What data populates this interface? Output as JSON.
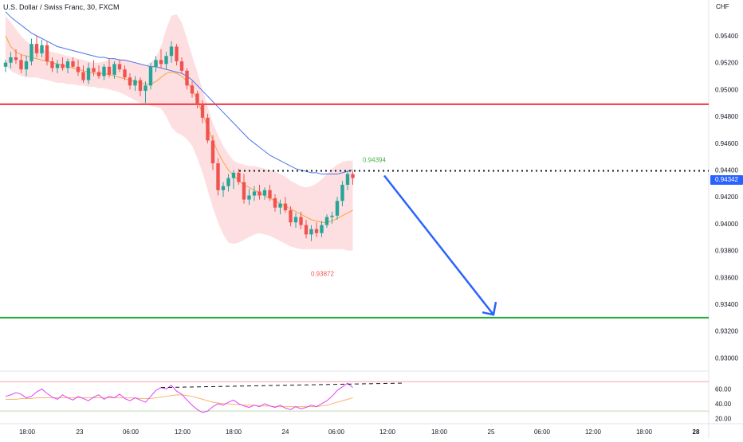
{
  "symbol_title": "U.S. Dollar / Swiss Franc, 30, FXCM",
  "currency": "CHF",
  "price_axis_labels": [
    "0.95400",
    "0.95200",
    "0.95000",
    "0.94800",
    "0.94600",
    "0.94400",
    "0.94200",
    "0.94000",
    "0.93800",
    "0.93600",
    "0.93400",
    "0.93200",
    "0.93000"
  ],
  "current_price": "0.94342",
  "annotations": {
    "high_label": "0.94394",
    "low_label": "0.93872"
  },
  "rsi_axis_labels": [
    "60.00",
    "40.00",
    "20.00"
  ],
  "time_axis_labels": [
    "18:00",
    "23",
    "06:00",
    "12:00",
    "18:00",
    "24",
    "06:00",
    "12:00",
    "18:00",
    "25",
    "06:00",
    "12:00",
    "18:00",
    "28"
  ],
  "colors": {
    "bull": "#26a69a",
    "bear": "#ef5350",
    "resistance": "#f23645",
    "support": "#22ab3a",
    "projection": "#2962ff",
    "ma_fast": "#f7a440",
    "ma_slow": "#4a74e8",
    "band": "#fdd9dc",
    "rsi": "#e040fb",
    "rsi_ma": "#f7b46a",
    "high_label": "#4caf50",
    "low_label": "#f05454"
  },
  "indicators": {
    "rsi_levels": [
      70,
      30
    ]
  },
  "chart_data": {
    "type": "candlestick",
    "price_range": [
      0.929,
      0.956
    ],
    "resistance_level": 0.9489,
    "support_level": 0.933,
    "high_marker": 0.94394,
    "low_marker": 0.93872,
    "last_price": 0.94342,
    "candles": [
      [
        0.9517,
        0.9522,
        0.9513,
        0.952
      ],
      [
        0.952,
        0.9528,
        0.9516,
        0.9524
      ],
      [
        0.9524,
        0.953,
        0.9519,
        0.9522
      ],
      [
        0.9522,
        0.9526,
        0.9512,
        0.9515
      ],
      [
        0.9515,
        0.9525,
        0.951,
        0.9521
      ],
      [
        0.9521,
        0.9538,
        0.9518,
        0.9534
      ],
      [
        0.9534,
        0.954,
        0.9524,
        0.9527
      ],
      [
        0.9527,
        0.9537,
        0.9524,
        0.9533
      ],
      [
        0.9533,
        0.9536,
        0.9518,
        0.9521
      ],
      [
        0.9521,
        0.9524,
        0.9513,
        0.9516
      ],
      [
        0.9516,
        0.9522,
        0.9512,
        0.9519
      ],
      [
        0.9519,
        0.9524,
        0.9514,
        0.9516
      ],
      [
        0.9516,
        0.9523,
        0.9512,
        0.9521
      ],
      [
        0.9521,
        0.9524,
        0.9516,
        0.9517
      ],
      [
        0.9517,
        0.9522,
        0.951,
        0.9513
      ],
      [
        0.9513,
        0.9518,
        0.9505,
        0.9507
      ],
      [
        0.9507,
        0.952,
        0.9504,
        0.9516
      ],
      [
        0.9516,
        0.9522,
        0.951,
        0.9513
      ],
      [
        0.9513,
        0.9518,
        0.9508,
        0.951
      ],
      [
        0.951,
        0.9519,
        0.9507,
        0.9517
      ],
      [
        0.9517,
        0.9523,
        0.9509,
        0.9511
      ],
      [
        0.9511,
        0.9521,
        0.9508,
        0.9519
      ],
      [
        0.9519,
        0.9522,
        0.9513,
        0.9515
      ],
      [
        0.9515,
        0.9518,
        0.9507,
        0.9509
      ],
      [
        0.9509,
        0.9512,
        0.95,
        0.9503
      ],
      [
        0.9503,
        0.951,
        0.9499,
        0.9507
      ],
      [
        0.9507,
        0.9509,
        0.9495,
        0.9499
      ],
      [
        0.9499,
        0.9506,
        0.949,
        0.9503
      ],
      [
        0.9503,
        0.952,
        0.95,
        0.9517
      ],
      [
        0.9517,
        0.9525,
        0.9513,
        0.9522
      ],
      [
        0.9522,
        0.953,
        0.9516,
        0.9519
      ],
      [
        0.9519,
        0.9528,
        0.9515,
        0.9525
      ],
      [
        0.9525,
        0.9536,
        0.952,
        0.9532
      ],
      [
        0.9532,
        0.9534,
        0.9518,
        0.9521
      ],
      [
        0.9521,
        0.9524,
        0.9512,
        0.9514
      ],
      [
        0.9514,
        0.9516,
        0.95,
        0.9503
      ],
      [
        0.9503,
        0.9506,
        0.9494,
        0.9497
      ],
      [
        0.9497,
        0.9499,
        0.9486,
        0.9489
      ],
      [
        0.9489,
        0.9492,
        0.9475,
        0.9479
      ],
      [
        0.9479,
        0.9482,
        0.946,
        0.9462
      ],
      [
        0.9462,
        0.9466,
        0.944,
        0.9445
      ],
      [
        0.9445,
        0.9449,
        0.9421,
        0.9425
      ],
      [
        0.9425,
        0.9431,
        0.942,
        0.9428
      ],
      [
        0.9428,
        0.9437,
        0.9424,
        0.9434
      ],
      [
        0.9434,
        0.944,
        0.9426,
        0.9438
      ],
      [
        0.9438,
        0.9441,
        0.9429,
        0.9431
      ],
      [
        0.9431,
        0.9437,
        0.9415,
        0.9418
      ],
      [
        0.9418,
        0.9426,
        0.9414,
        0.9421
      ],
      [
        0.9421,
        0.9428,
        0.9417,
        0.9424
      ],
      [
        0.9424,
        0.9429,
        0.9418,
        0.9421
      ],
      [
        0.9421,
        0.9427,
        0.9418,
        0.9425
      ],
      [
        0.9425,
        0.9429,
        0.9417,
        0.9419
      ],
      [
        0.9419,
        0.9422,
        0.9409,
        0.9412
      ],
      [
        0.9412,
        0.9418,
        0.9407,
        0.9415
      ],
      [
        0.9415,
        0.942,
        0.9408,
        0.941
      ],
      [
        0.941,
        0.9413,
        0.9398,
        0.9401
      ],
      [
        0.9401,
        0.9408,
        0.9397,
        0.9405
      ],
      [
        0.9405,
        0.9409,
        0.9396,
        0.9399
      ],
      [
        0.9399,
        0.9403,
        0.9389,
        0.9392
      ],
      [
        0.9392,
        0.9399,
        0.9387,
        0.9396
      ],
      [
        0.9396,
        0.9401,
        0.939,
        0.9393
      ],
      [
        0.9393,
        0.9402,
        0.939,
        0.9399
      ],
      [
        0.9399,
        0.9407,
        0.9397,
        0.9405
      ],
      [
        0.9405,
        0.9409,
        0.94,
        0.9406
      ],
      [
        0.9406,
        0.942,
        0.9403,
        0.9417
      ],
      [
        0.9417,
        0.9432,
        0.9413,
        0.9429
      ],
      [
        0.9429,
        0.944,
        0.9425,
        0.9437
      ],
      [
        0.9437,
        0.9439,
        0.9429,
        0.9434
      ]
    ],
    "ma_fast": [
      0.954,
      0.9532,
      0.9528,
      0.9526,
      0.9525,
      0.9524,
      0.9523,
      0.9522,
      0.9521,
      0.952,
      0.9519,
      0.9518,
      0.9517,
      0.9516,
      0.9515,
      0.9514,
      0.9513,
      0.9512,
      0.9512,
      0.9512,
      0.9511,
      0.951,
      0.9509,
      0.9508,
      0.9507,
      0.9506,
      0.9505,
      0.9504,
      0.9504,
      0.9506,
      0.9509,
      0.9512,
      0.9513,
      0.9512,
      0.951,
      0.9506,
      0.95,
      0.9492,
      0.9482,
      0.9472,
      0.9462,
      0.9453,
      0.9446,
      0.944,
      0.9436,
      0.9432,
      0.9429,
      0.9427,
      0.9425,
      0.9423,
      0.9421,
      0.9419,
      0.9417,
      0.9415,
      0.9413,
      0.9411,
      0.9409,
      0.9407,
      0.9405,
      0.9403,
      0.9402,
      0.9401,
      0.9401,
      0.9402,
      0.9404,
      0.9406,
      0.9408,
      0.941
    ],
    "ma_slow": [
      0.9558,
      0.9554,
      0.9551,
      0.9548,
      0.9545,
      0.9542,
      0.954,
      0.9538,
      0.9536,
      0.9534,
      0.9532,
      0.9531,
      0.953,
      0.9529,
      0.9528,
      0.9527,
      0.9526,
      0.9525,
      0.9524,
      0.9524,
      0.9523,
      0.9523,
      0.9522,
      0.9522,
      0.9521,
      0.952,
      0.9519,
      0.9518,
      0.9517,
      0.9517,
      0.9516,
      0.9515,
      0.9514,
      0.9513,
      0.9512,
      0.951,
      0.9507,
      0.9503,
      0.9499,
      0.9495,
      0.9491,
      0.9487,
      0.9483,
      0.9479,
      0.9475,
      0.9471,
      0.9467,
      0.9463,
      0.946,
      0.9457,
      0.9454,
      0.9451,
      0.9449,
      0.9447,
      0.9445,
      0.9443,
      0.9441,
      0.944,
      0.9439,
      0.9438,
      0.9438,
      0.9437,
      0.9437,
      0.9437,
      0.9437,
      0.9438,
      0.9439,
      0.944
    ],
    "band_upper": [
      0.9555,
      0.955,
      0.9545,
      0.954,
      0.9536,
      0.9533,
      0.9531,
      0.953,
      0.9529,
      0.9528,
      0.9527,
      0.9526,
      0.9525,
      0.9524,
      0.9523,
      0.9522,
      0.9521,
      0.952,
      0.952,
      0.9521,
      0.9522,
      0.9523,
      0.9523,
      0.9522,
      0.9521,
      0.952,
      0.9519,
      0.9518,
      0.952,
      0.9524,
      0.9532,
      0.9545,
      0.9555,
      0.9556,
      0.955,
      0.9538,
      0.9525,
      0.9513,
      0.95,
      0.9487,
      0.9475,
      0.9466,
      0.9458,
      0.9452,
      0.9447,
      0.9445,
      0.9444,
      0.9443,
      0.9443,
      0.9442,
      0.9441,
      0.944,
      0.9439,
      0.9437,
      0.9435,
      0.9432,
      0.943,
      0.9428,
      0.9427,
      0.9428,
      0.943,
      0.9433,
      0.9437,
      0.9441,
      0.9444,
      0.9446,
      0.9447,
      0.9447
    ],
    "band_lower": [
      0.9518,
      0.9514,
      0.9512,
      0.951,
      0.9509,
      0.9509,
      0.9509,
      0.9508,
      0.9507,
      0.9506,
      0.9505,
      0.9505,
      0.9504,
      0.9504,
      0.9503,
      0.9503,
      0.9502,
      0.9502,
      0.9501,
      0.9501,
      0.95,
      0.9499,
      0.9498,
      0.9496,
      0.9494,
      0.9492,
      0.949,
      0.9489,
      0.9488,
      0.9487,
      0.9486,
      0.948,
      0.9472,
      0.9468,
      0.9466,
      0.9463,
      0.9458,
      0.9449,
      0.9438,
      0.9425,
      0.9412,
      0.9401,
      0.9392,
      0.9386,
      0.9385,
      0.9386,
      0.9388,
      0.939,
      0.9392,
      0.9393,
      0.9392,
      0.9391,
      0.9389,
      0.9387,
      0.9385,
      0.9383,
      0.9382,
      0.9381,
      0.9381,
      0.9381,
      0.9381,
      0.9381,
      0.9381,
      0.9381,
      0.9381,
      0.9381,
      0.938,
      0.938
    ],
    "rsi": [
      50,
      52,
      55,
      53,
      48,
      50,
      56,
      60,
      54,
      49,
      46,
      52,
      48,
      45,
      50,
      47,
      44,
      49,
      52,
      46,
      50,
      48,
      53,
      47,
      44,
      48,
      45,
      42,
      50,
      58,
      62,
      60,
      65,
      57,
      53,
      45,
      38,
      32,
      28,
      30,
      36,
      40,
      38,
      42,
      45,
      40,
      37,
      35,
      38,
      36,
      40,
      37,
      35,
      38,
      34,
      32,
      36,
      33,
      35,
      38,
      36,
      40,
      44,
      50,
      58,
      63,
      68,
      62
    ],
    "rsi_ma": [
      46,
      46,
      46,
      47,
      47,
      47,
      48,
      48,
      48,
      48,
      48,
      48,
      48,
      48,
      48,
      48,
      48,
      48,
      48,
      48,
      48,
      48,
      48,
      48,
      48,
      48,
      47,
      47,
      47,
      48,
      49,
      50,
      51,
      52,
      52,
      51,
      50,
      48,
      46,
      44,
      42,
      41,
      40,
      40,
      39,
      39,
      38,
      38,
      38,
      37,
      37,
      37,
      36,
      36,
      36,
      36,
      36,
      36,
      36,
      36,
      36,
      37,
      38,
      40,
      42,
      44,
      46,
      48
    ],
    "rsi_range": [
      15,
      80
    ],
    "projection_target": 0.9331
  }
}
